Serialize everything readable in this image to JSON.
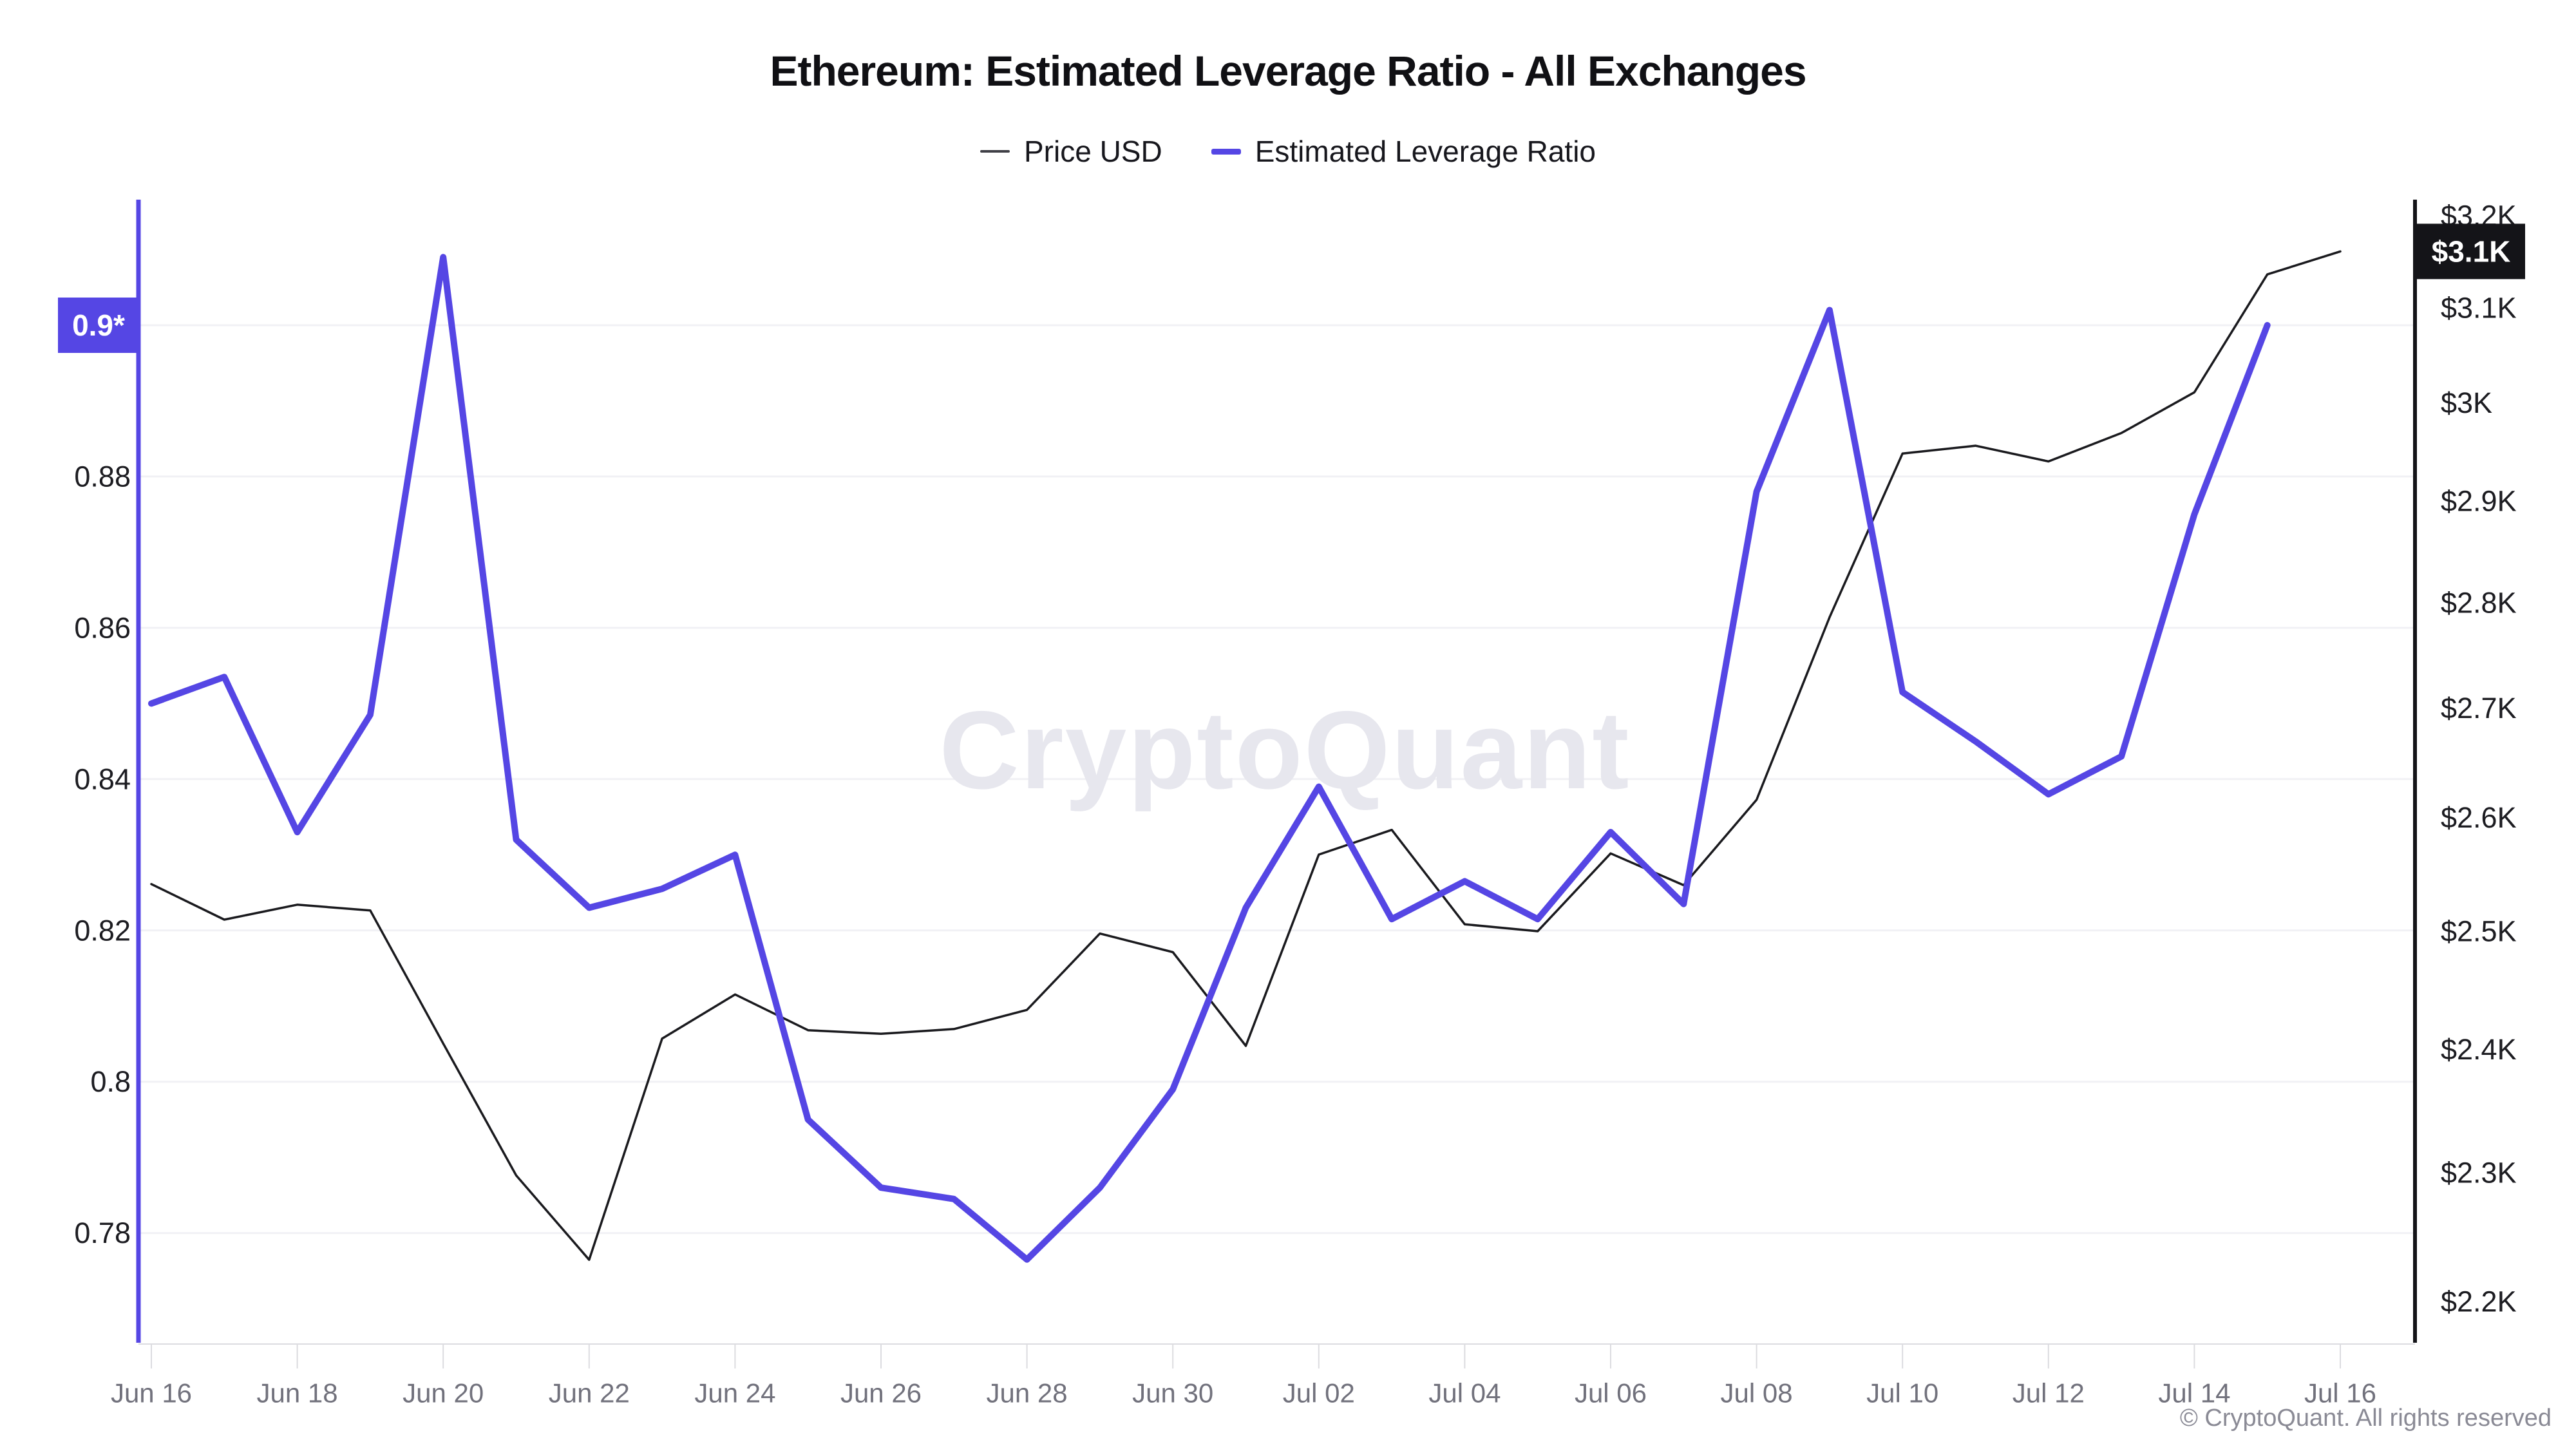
{
  "header": {
    "title": "Ethereum: Estimated Leverage Ratio - All Exchanges"
  },
  "legend": {
    "items": [
      {
        "label": "Price USD",
        "color": "#3f3f46",
        "thickness": 4
      },
      {
        "label": "Estimated Leverage Ratio",
        "color": "#5546e4",
        "thickness": 9
      }
    ]
  },
  "watermark": {
    "text": "CryptoQuant",
    "color": "#e7e7ee"
  },
  "footer": {
    "copyright": "© CryptoQuant. All rights reserved"
  },
  "colors": {
    "accent_purple": "#5546e4",
    "price_black": "#1a1a1e",
    "grid": "#f1f1f5",
    "axis_light": "#dcdce0",
    "text_dark": "#1c1c21",
    "text_gray": "#71717c",
    "badge_black": "#141418",
    "badge_text": "#ffffff"
  },
  "chart_data": {
    "type": "line",
    "title": "Ethereum: Estimated Leverage Ratio - All Exchanges",
    "x": [
      "Jun 16",
      "Jun 17",
      "Jun 18",
      "Jun 19",
      "Jun 20",
      "Jun 21",
      "Jun 22",
      "Jun 23",
      "Jun 24",
      "Jun 25",
      "Jun 26",
      "Jun 27",
      "Jun 28",
      "Jun 29",
      "Jun 30",
      "Jul 01",
      "Jul 02",
      "Jul 03",
      "Jul 04",
      "Jul 05",
      "Jul 06",
      "Jul 07",
      "Jul 08",
      "Jul 09",
      "Jul 10",
      "Jul 11",
      "Jul 12",
      "Jul 13",
      "Jul 14",
      "Jul 15",
      "Jul 16"
    ],
    "x_tick_step": 2,
    "series": [
      {
        "name": "Price USD",
        "axis": "right",
        "color": "#1a1a1e",
        "width": 3.5,
        "values": [
          2541,
          2510,
          2523,
          2518,
          2405,
          2298,
          2232,
          2409,
          2446,
          2416,
          2413,
          2417,
          2433,
          2498,
          2482,
          2403,
          2567,
          2589,
          2506,
          2500,
          2568,
          2540,
          2616,
          2786,
          2948,
          2956,
          2940,
          2969,
          3011,
          3136,
          3161
        ]
      },
      {
        "name": "Estimated Leverage Ratio",
        "axis": "left",
        "color": "#5546e4",
        "width": 10,
        "values": [
          0.85,
          0.8535,
          0.833,
          0.8485,
          0.909,
          0.832,
          0.823,
          0.8255,
          0.83,
          0.795,
          0.786,
          0.7845,
          0.7765,
          0.786,
          0.799,
          0.823,
          0.839,
          0.8215,
          0.8265,
          0.8215,
          0.833,
          0.8235,
          0.878,
          0.902,
          0.8515,
          0.845,
          0.838,
          0.843,
          0.875,
          0.9,
          null
        ]
      }
    ],
    "leverage_axis": {
      "min": 0.7655,
      "max": 0.9166,
      "gridlines": [
        0.9,
        0.88,
        0.86,
        0.84,
        0.82,
        0.8,
        0.78
      ],
      "labels": [
        {
          "value": 0.88,
          "text": "0.88"
        },
        {
          "value": 0.86,
          "text": "0.86"
        },
        {
          "value": 0.84,
          "text": "0.84"
        },
        {
          "value": 0.82,
          "text": "0.82"
        },
        {
          "value": 0.8,
          "text": "0.8"
        },
        {
          "value": 0.78,
          "text": "0.78"
        }
      ]
    },
    "price_axis": {
      "scale": "log",
      "min": 2169,
      "max": 3218,
      "labels": [
        {
          "value": 3200,
          "text": "$3.2K"
        },
        {
          "value": 3100,
          "text": "$3.1K"
        },
        {
          "value": 3000,
          "text": "$3K"
        },
        {
          "value": 2900,
          "text": "$2.9K"
        },
        {
          "value": 2800,
          "text": "$2.8K"
        },
        {
          "value": 2700,
          "text": "$2.7K"
        },
        {
          "value": 2600,
          "text": "$2.6K"
        },
        {
          "value": 2500,
          "text": "$2.5K"
        },
        {
          "value": 2400,
          "text": "$2.4K"
        },
        {
          "value": 2300,
          "text": "$2.3K"
        },
        {
          "value": 2200,
          "text": "$2.2K"
        }
      ]
    },
    "badges": {
      "left": {
        "text": "0.9*",
        "value": 0.9
      },
      "right": {
        "text": "$3.1K",
        "value": 3161
      }
    },
    "grid": true,
    "legend_position": "top"
  }
}
